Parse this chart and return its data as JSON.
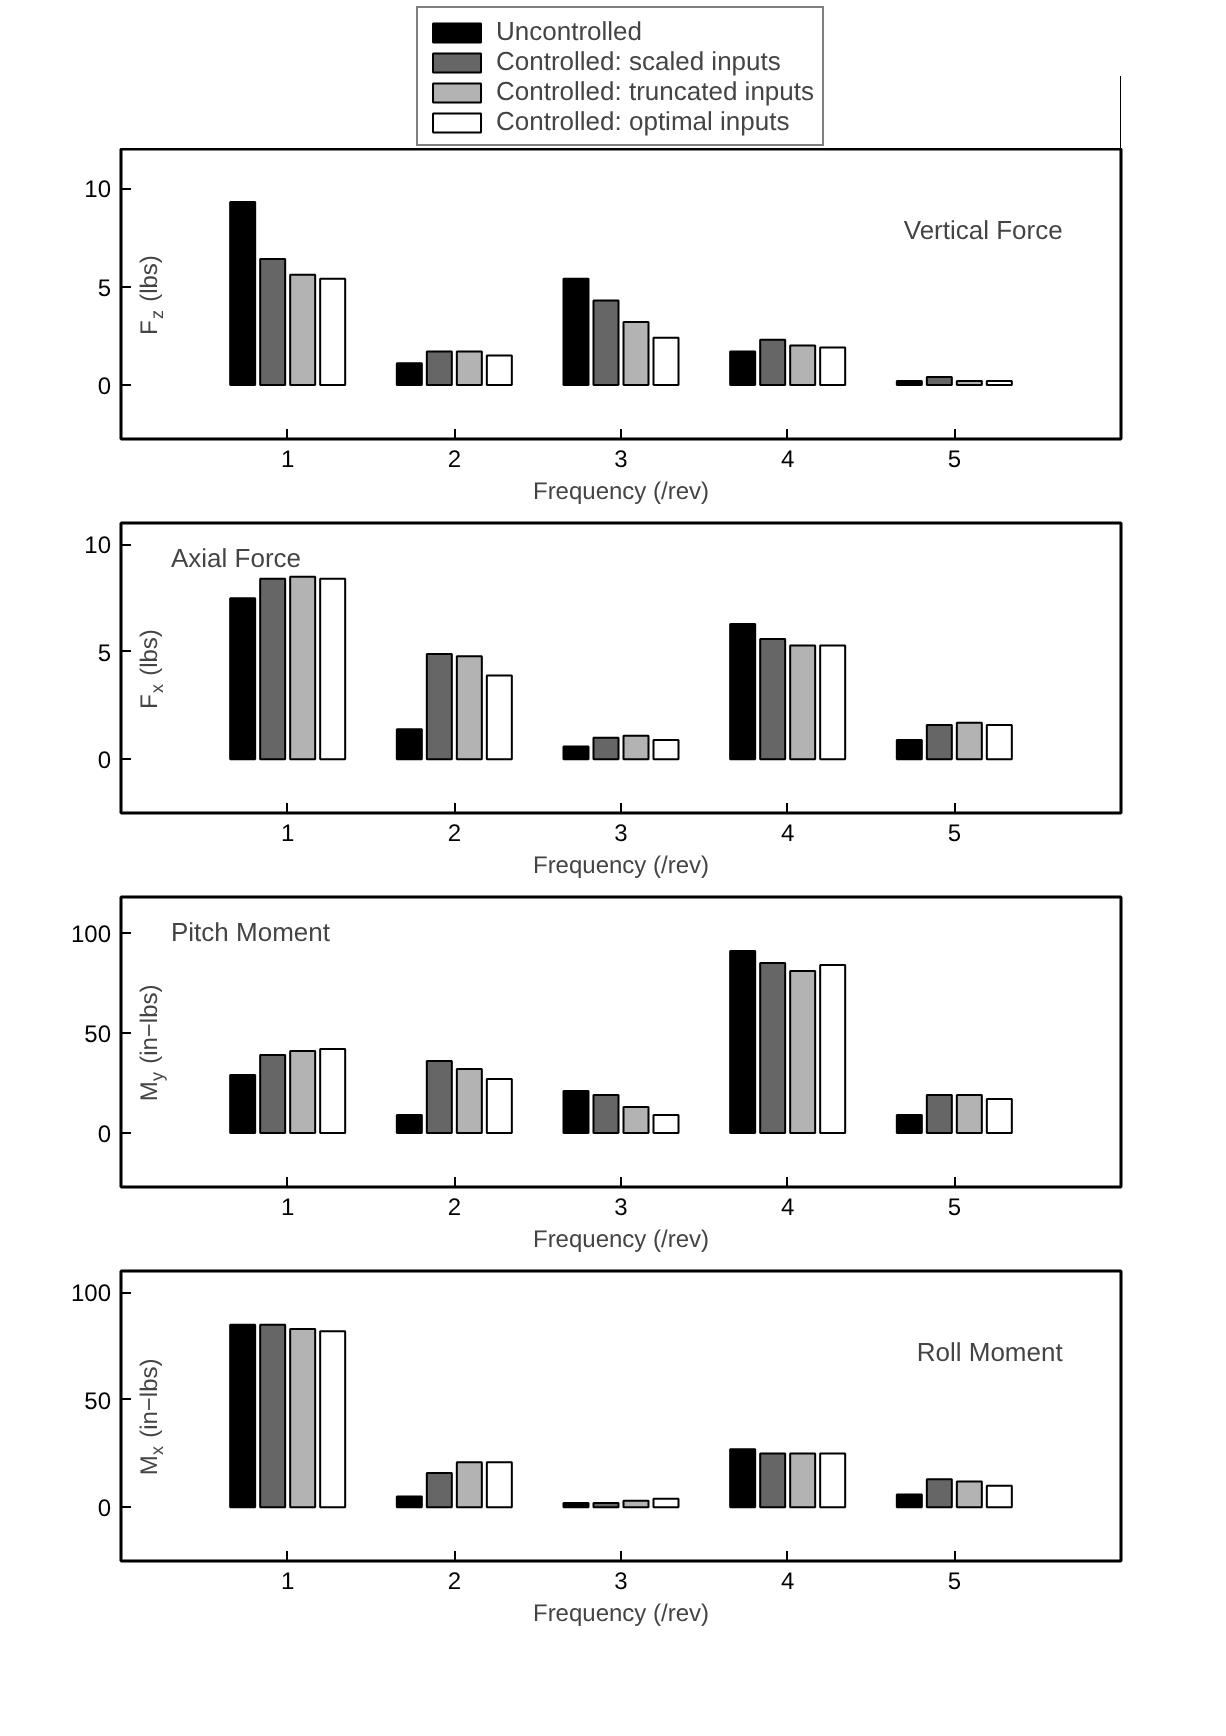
{
  "chart_data": [
    {
      "type": "bar",
      "xlabel": "Frequency (/rev)",
      "ylabel": "F$_{z}$ (lbs)",
      "annotations": [
        "Vertical Force"
      ],
      "x": [
        1,
        2,
        3,
        4,
        5
      ],
      "xlim": [
        0,
        6
      ],
      "xticks": [
        1,
        2,
        3,
        4,
        5
      ],
      "ylim": [
        -2.75,
        12
      ],
      "yticks": [
        0,
        5,
        10
      ],
      "grid": false,
      "legend": "top",
      "series": [
        {
          "name": "Uncontrolled",
          "color": "#000000",
          "values": [
            9.3,
            1.1,
            5.4,
            1.7,
            0.2
          ]
        },
        {
          "name": "Controlled: scaled inputs",
          "color": "#666666",
          "values": [
            6.4,
            1.7,
            4.3,
            2.3,
            0.4
          ]
        },
        {
          "name": "Controlled: truncated inputs",
          "color": "#b3b3b3",
          "values": [
            5.6,
            1.7,
            3.2,
            2.0,
            0.2
          ]
        },
        {
          "name": "Controlled: optimal inputs",
          "color": "#ffffff",
          "values": [
            5.4,
            1.5,
            2.4,
            1.9,
            0.2
          ]
        }
      ]
    },
    {
      "type": "bar",
      "xlabel": "Frequency (/rev)",
      "ylabel": "F$_{x}$ (lbs)",
      "annotations": [
        "Axial Force"
      ],
      "x": [
        1,
        2,
        3,
        4,
        5
      ],
      "xlim": [
        0,
        6
      ],
      "xticks": [
        1,
        2,
        3,
        4,
        5
      ],
      "ylim": [
        -2.5,
        11
      ],
      "yticks": [
        0,
        5,
        10
      ],
      "grid": false,
      "series": [
        {
          "color": "#000000",
          "values": [
            7.5,
            1.4,
            0.6,
            6.3,
            0.9
          ]
        },
        {
          "color": "#666666",
          "values": [
            8.4,
            4.9,
            1.0,
            5.6,
            1.6
          ]
        },
        {
          "color": "#b3b3b3",
          "values": [
            8.5,
            4.8,
            1.1,
            5.3,
            1.7
          ]
        },
        {
          "color": "#ffffff",
          "values": [
            8.4,
            3.9,
            0.9,
            5.3,
            1.6
          ]
        }
      ]
    },
    {
      "type": "bar",
      "xlabel": "Frequency (/rev)",
      "ylabel": "M$_{y}$ (in−lbs)",
      "annotations": [
        "Pitch Moment"
      ],
      "x": [
        1,
        2,
        3,
        4,
        5
      ],
      "xlim": [
        0,
        6
      ],
      "xticks": [
        1,
        2,
        3,
        4,
        5
      ],
      "ylim": [
        -27,
        118
      ],
      "yticks": [
        0,
        50,
        100
      ],
      "grid": false,
      "series": [
        {
          "color": "#000000",
          "values": [
            29,
            9,
            21,
            91,
            9
          ]
        },
        {
          "color": "#666666",
          "values": [
            39,
            36,
            19,
            85,
            19
          ]
        },
        {
          "color": "#b3b3b3",
          "values": [
            41,
            32,
            13,
            81,
            19
          ]
        },
        {
          "color": "#ffffff",
          "values": [
            42,
            27,
            9,
            84,
            17
          ]
        }
      ]
    },
    {
      "type": "bar",
      "xlabel": "Frequency (/rev)",
      "ylabel": "M$_{x}$ (in−lbs)",
      "annotations": [
        "Roll Moment"
      ],
      "x": [
        1,
        2,
        3,
        4,
        5
      ],
      "xlim": [
        0,
        6
      ],
      "xticks": [
        1,
        2,
        3,
        4,
        5
      ],
      "ylim": [
        -25,
        110
      ],
      "yticks": [
        0,
        50,
        100
      ],
      "grid": false,
      "series": [
        {
          "color": "#000000",
          "values": [
            85,
            5,
            2,
            27,
            6
          ]
        },
        {
          "color": "#666666",
          "values": [
            85,
            16,
            2,
            25,
            13
          ]
        },
        {
          "color": "#b3b3b3",
          "values": [
            83,
            21,
            3,
            25,
            12
          ]
        },
        {
          "color": "#ffffff",
          "values": [
            82,
            21,
            4,
            25,
            10
          ]
        }
      ]
    }
  ]
}
